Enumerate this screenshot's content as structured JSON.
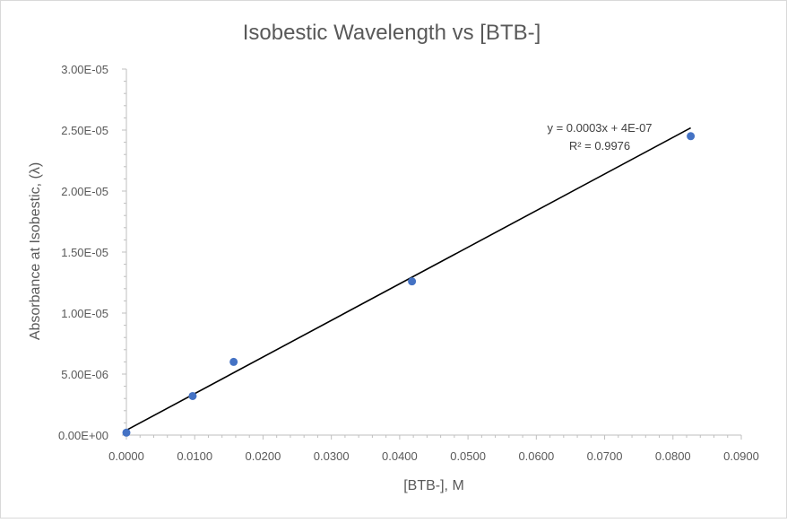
{
  "chart_data": {
    "type": "scatter",
    "title": "Isobestic Wavelength vs [BTB-]",
    "xlabel": "[BTB-], M",
    "ylabel": "Absorbance at Isobestic, (λ)",
    "xlim": [
      0,
      0.09
    ],
    "ylim": [
      0,
      3e-05
    ],
    "x_tick_values": [
      0,
      0.01,
      0.02,
      0.03,
      0.04,
      0.05,
      0.06,
      0.07,
      0.08,
      0.09
    ],
    "x_tick_labels": [
      "0.0000",
      "0.0100",
      "0.0200",
      "0.0300",
      "0.0400",
      "0.0500",
      "0.0600",
      "0.0700",
      "0.0800",
      "0.0900"
    ],
    "y_tick_values": [
      0,
      5e-06,
      1e-05,
      1.5e-05,
      2e-05,
      2.5e-05,
      3e-05
    ],
    "y_tick_labels": [
      "0.00E+00",
      "5.00E-06",
      "1.00E-05",
      "1.50E-05",
      "2.00E-05",
      "2.50E-05",
      "3.00E-05"
    ],
    "grid": false,
    "legend": "none",
    "series": [
      {
        "x": [
          0,
          0.0097,
          0.0157,
          0.0418,
          0.0826
        ],
        "y": [
          2e-07,
          3.2e-06,
          6e-06,
          1.26e-05,
          2.45e-05
        ],
        "color": "#4472C4"
      }
    ],
    "trendline": {
      "slope": 0.0003,
      "intercept": 4e-07,
      "x_range": [
        0,
        0.0826
      ],
      "equation_label": "y = 0.0003x + 4E-07",
      "r2_label": "R² = 0.9976",
      "color": "#000000"
    }
  }
}
